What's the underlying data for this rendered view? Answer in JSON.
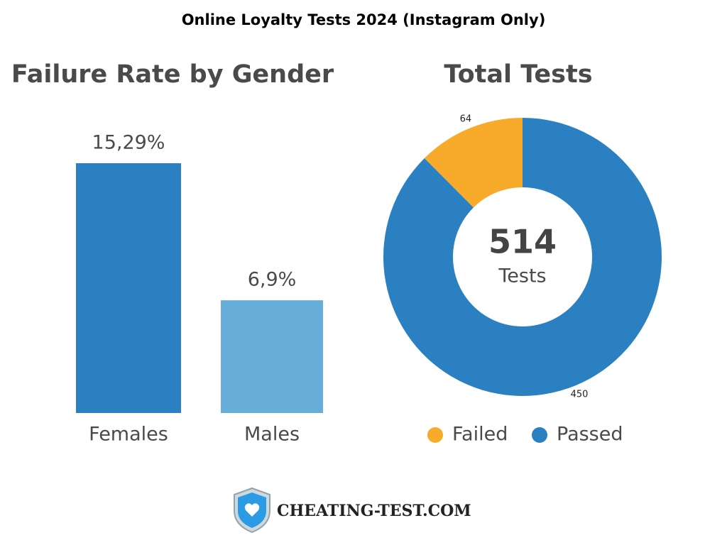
{
  "header": {
    "title": "Online Loyalty Tests 2024 (Instagram Only)"
  },
  "chart_data": [
    {
      "type": "bar",
      "title": "Failure Rate by Gender",
      "categories": [
        "Females",
        "Males"
      ],
      "values": [
        15.29,
        6.9
      ],
      "value_labels": [
        "15,29%",
        "6,9%"
      ],
      "colors": [
        "#2b80c1",
        "#66aed9"
      ]
    },
    {
      "type": "pie",
      "title": "Total Tests",
      "categories": [
        "Failed",
        "Passed"
      ],
      "values": [
        64,
        450
      ],
      "colors": [
        "#f8ab2a",
        "#2b80c1"
      ],
      "center_value": 514,
      "center_label": "Tests",
      "legend": "bottom"
    }
  ],
  "footer": {
    "brand": "CHEATING-TEST.COM"
  }
}
